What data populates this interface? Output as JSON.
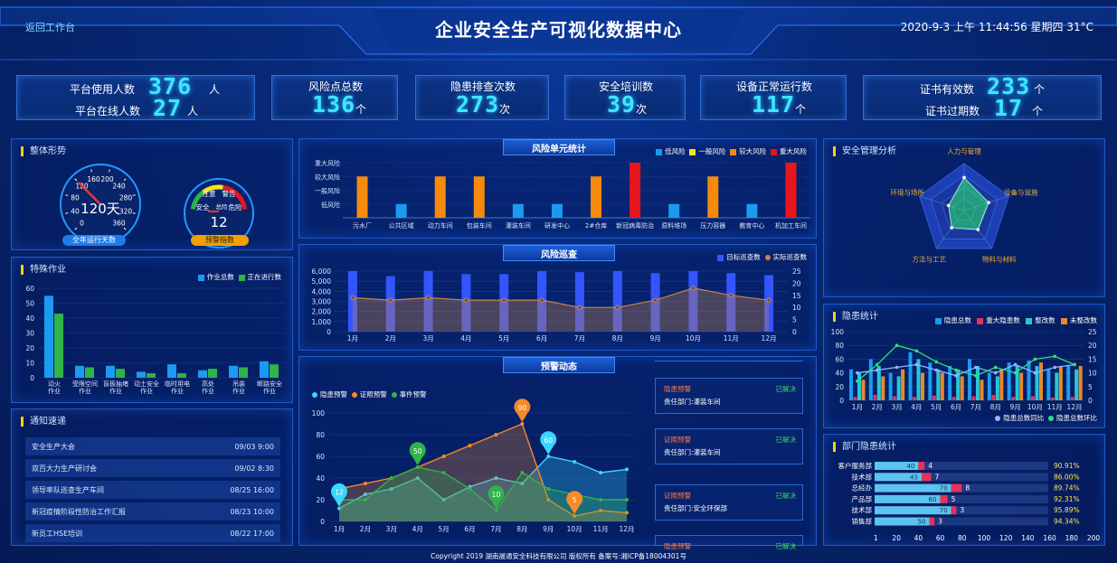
{
  "header": {
    "back_link": "返回工作台",
    "title": "企业安全生产可视化数据中心",
    "datetime": "2020-9-3 上午 11:44:56 星期四 31°C"
  },
  "stats": {
    "users_label": "平台使用人数",
    "users_value": "376",
    "users_unit": "人",
    "online_label": "平台在线人数",
    "online_value": "27",
    "online_unit": "人",
    "risk_label": "风险点总数",
    "risk_value": "136",
    "risk_unit": "个",
    "hazard_label": "隐患排查次数",
    "hazard_value": "273",
    "hazard_unit": "次",
    "training_label": "安全培训数",
    "training_value": "39",
    "training_unit": "次",
    "equip_label": "设备正常运行数",
    "equip_value": "117",
    "equip_unit": "个",
    "cert_valid_label": "证书有效数",
    "cert_valid_value": "233",
    "cert_valid_unit": "个",
    "cert_expired_label": "证书过期数",
    "cert_expired_value": "17",
    "cert_expired_unit": "个"
  },
  "overall": {
    "title": "整体形势",
    "speed_ticks": [
      "0",
      "40",
      "80",
      "120",
      "160",
      "200",
      "240",
      "280",
      "320",
      "360"
    ],
    "speed_value": "120天",
    "speed_caption": "全年运行天数",
    "warn_labels": {
      "caution": "注意",
      "warning": "警告",
      "safe": "安全",
      "danger": "危险",
      "total": "总险"
    },
    "warn_value": "12",
    "warn_caption": "预警指数",
    "colors": {
      "needle": "#ff3030",
      "gauge_blue": "#1e9bff",
      "caption_blue": "#1e7bea",
      "caption_orange": "#f0a000"
    }
  },
  "special": {
    "title": "特殊作业",
    "legend": [
      "作业总数",
      "正在进行数"
    ],
    "chart_data": {
      "type": "bar",
      "categories": [
        "动火\n作业",
        "受限空间\n作业",
        "盲板抽堵\n作业",
        "动土安全\n作业",
        "临时用电\n作业",
        "高处\n作业",
        "吊装\n作业",
        "断路安全\n作业"
      ],
      "series": [
        {
          "name": "作业总数",
          "values": [
            55,
            8,
            8,
            4,
            9,
            5,
            8,
            11
          ]
        },
        {
          "name": "正在进行数",
          "values": [
            43,
            7,
            6,
            3,
            3,
            6,
            7,
            9
          ]
        }
      ],
      "ylim": [
        0,
        60
      ],
      "yticks": [
        "0",
        "10",
        "20",
        "30",
        "40",
        "50",
        "60"
      ]
    },
    "colors": {
      "a": "#1b9bf0",
      "b": "#2fb34a"
    }
  },
  "notices": {
    "title": "通知速递",
    "items": [
      {
        "text": "安全生产大会",
        "time": "09/03 9:00"
      },
      {
        "text": "双百大力生产研讨会",
        "time": "09/02 8:30"
      },
      {
        "text": "领导率队巡查生产车间",
        "time": "08/25 16:00"
      },
      {
        "text": "新冠疫情阶段性防治工作汇报",
        "time": "08/23 10:00"
      },
      {
        "text": "新员工HSE培训",
        "time": "08/22 17:00"
      }
    ]
  },
  "risk_units": {
    "title": "风险单元统计",
    "legend": [
      "低风险",
      "一般风险",
      "较大风险",
      "重大风险"
    ],
    "levels": [
      "重大风险",
      "较大风险",
      "一般风险",
      "低风险"
    ],
    "chart_data": {
      "type": "bar",
      "categories": [
        "污水厂",
        "公共区域",
        "动力车间",
        "包装车间",
        "灌装车间",
        "研发中心",
        "2#仓库",
        "新冠病毒防治",
        "原料堆场",
        "压力容器",
        "教育中心",
        "机加工车间"
      ],
      "values": [
        3,
        1,
        3,
        3,
        1,
        1,
        3,
        4,
        1,
        3,
        1,
        4
      ],
      "levels": [
        "较大风险",
        "低风险",
        "较大风险",
        "较大风险",
        "低风险",
        "低风险",
        "较大风险",
        "重大风险",
        "低风险",
        "较大风险",
        "低风险",
        "重大风险"
      ]
    },
    "colors": {
      "低风险": "#1b9bf0",
      "一般风险": "#f5e51b",
      "较大风险": "#f58a0b",
      "重大风险": "#e8151c"
    }
  },
  "patrol": {
    "title": "风险巡查",
    "legend": [
      "目标巡查数",
      "实际巡查数"
    ],
    "chart_data": {
      "type": "bar",
      "categories": [
        "1月",
        "2月",
        "3月",
        "4月",
        "5月",
        "6月",
        "7月",
        "8月",
        "9月",
        "10月",
        "11月",
        "12月"
      ],
      "series": [
        {
          "name": "目标巡查数",
          "values": [
            6000,
            5500,
            6000,
            5700,
            5700,
            6000,
            5900,
            6000,
            5800,
            6000,
            5800,
            5600
          ]
        },
        {
          "name": "实际巡查数",
          "values": [
            14,
            13,
            14,
            13,
            13,
            13,
            10,
            10,
            13,
            18,
            15,
            13
          ]
        }
      ],
      "ylim": [
        0,
        6000
      ],
      "yticks": [
        "0",
        "1,000",
        "2,000",
        "3,000",
        "4,000",
        "5,000",
        "6,000"
      ],
      "y2lim": [
        0,
        25
      ],
      "y2ticks": [
        "0",
        "5",
        "10",
        "15",
        "20",
        "25"
      ]
    }
  },
  "warning": {
    "title": "预警动态",
    "legend": [
      "隐患预警",
      "证照预警",
      "事件预警"
    ],
    "chart_data": {
      "type": "line",
      "categories": [
        "1月",
        "2月",
        "3月",
        "4月",
        "5月",
        "6月",
        "7月",
        "8月",
        "9月",
        "10月",
        "11月",
        "12月"
      ],
      "ylim": [
        0,
        100
      ],
      "yticks": [
        "0",
        "20",
        "40",
        "60",
        "80",
        "100"
      ],
      "series": [
        {
          "name": "隐患预警",
          "values": [
            12,
            25,
            30,
            40,
            20,
            32,
            40,
            35,
            60,
            55,
            45,
            48
          ]
        },
        {
          "name": "证照预警",
          "values": [
            30,
            35,
            40,
            50,
            60,
            70,
            80,
            90,
            20,
            5,
            10,
            8
          ]
        },
        {
          "name": "事件预警",
          "values": [
            20,
            20,
            40,
            50,
            45,
            30,
            10,
            45,
            30,
            25,
            20,
            20
          ]
        }
      ],
      "pins": [
        {
          "series": 0,
          "index": 0,
          "value": "12"
        },
        {
          "series": 2,
          "index": 3,
          "value": "50"
        },
        {
          "series": 2,
          "index": 6,
          "value": "10"
        },
        {
          "series": 1,
          "index": 7,
          "value": "90"
        },
        {
          "series": 0,
          "index": 8,
          "value": "60"
        },
        {
          "series": 1,
          "index": 9,
          "value": "5"
        }
      ]
    },
    "colors": {
      "a": "#3ad6ff",
      "b": "#f58a2b",
      "c": "#2fb34a"
    },
    "cards": [
      {
        "type": "隐患预警",
        "status": "已解决",
        "desc": "责任部门:灌装车间"
      },
      {
        "type": "证照预警",
        "status": "已解决",
        "desc": "责任部门:灌装车间"
      },
      {
        "type": "证照预警",
        "status": "已解决",
        "desc": "责任部门:安全环保部"
      },
      {
        "type": "隐患预警",
        "status": "已解决",
        "desc": ""
      }
    ]
  },
  "safety_mgmt": {
    "title": "安全管理分析",
    "chart_data": {
      "type": "radar",
      "axes": [
        "人力与管理",
        "设备与设施",
        "物料与材料",
        "方法与工艺",
        "环境与场所"
      ],
      "values": [
        0.7,
        0.55,
        0.5,
        0.45,
        0.35
      ],
      "max": 1
    }
  },
  "hazard_stats": {
    "title": "隐患统计",
    "legend": [
      "隐患总数",
      "重大隐患数",
      "整改数",
      "未整改数"
    ],
    "legend2": [
      "隐患总数同比",
      "隐患总数环比"
    ],
    "chart_data": {
      "type": "bar",
      "categories": [
        "1月",
        "2月",
        "3月",
        "4月",
        "5月",
        "6月",
        "7月",
        "8月",
        "9月",
        "10月",
        "11月",
        "12月"
      ],
      "ylim": [
        0,
        100
      ],
      "yticks": [
        "0",
        "20",
        "40",
        "60",
        "80",
        "100"
      ],
      "y2lim": [
        0,
        25
      ],
      "y2ticks": [
        "0",
        "5",
        "10",
        "15",
        "20",
        "25"
      ],
      "series": [
        {
          "name": "隐患总数",
          "values": [
            45,
            60,
            40,
            70,
            55,
            50,
            60,
            40,
            55,
            58,
            45,
            50
          ]
        },
        {
          "name": "重大隐患数",
          "values": [
            5,
            8,
            6,
            5,
            7,
            5,
            6,
            8,
            5,
            6,
            4,
            5
          ]
        },
        {
          "name": "整改数",
          "values": [
            40,
            50,
            35,
            60,
            45,
            45,
            50,
            35,
            50,
            50,
            40,
            45
          ]
        },
        {
          "name": "未整改数",
          "values": [
            30,
            35,
            45,
            40,
            40,
            35,
            30,
            45,
            40,
            55,
            50,
            50
          ]
        }
      ],
      "lines": [
        {
          "name": "隐患总数同比",
          "values": [
            10,
            11,
            12,
            13,
            11,
            9,
            12,
            10,
            13,
            10,
            12,
            13
          ]
        },
        {
          "name": "隐患总数环比",
          "values": [
            7,
            13,
            20,
            18,
            14,
            11,
            9,
            12,
            10,
            15,
            16,
            13
          ]
        }
      ]
    },
    "colors": {
      "a": "#1b9bf0",
      "b": "#e8305a",
      "c": "#27c7d6",
      "d": "#e58a2b"
    }
  },
  "dept": {
    "title": "部门隐患统计",
    "chart_data": {
      "type": "bar",
      "categories": [
        "客户服务部",
        "技术部",
        "总经办",
        "产品部",
        "技术部",
        "销售部"
      ],
      "values": [
        40,
        43,
        70,
        60,
        70,
        50
      ],
      "extra": [
        4,
        7,
        8,
        5,
        3,
        3
      ],
      "rates": [
        "90.91%",
        "86.00%",
        "89.74%",
        "92.31%",
        "95.89%",
        "94.34%"
      ],
      "xlim": [
        0,
        200
      ],
      "xticks": [
        "1",
        "20",
        "40",
        "60",
        "80",
        "100",
        "120",
        "140",
        "160",
        "180",
        "200"
      ]
    }
  },
  "footer": {
    "text": "Copyright  2019 湖南晟通安全科技有限公司 版权所有 备案号:湘ICP备18004301号"
  }
}
